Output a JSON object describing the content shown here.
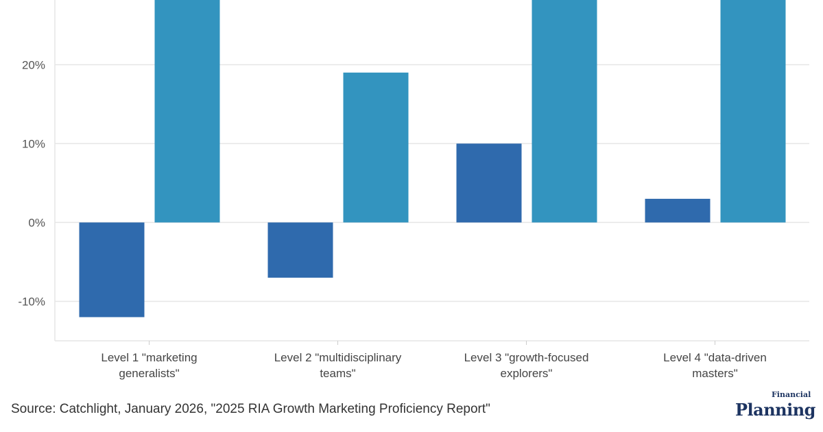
{
  "chart_data": {
    "type": "bar",
    "categories": [
      [
        "Level 1 \"marketing",
        "generalists\""
      ],
      [
        "Level 2 \"multidisciplinary",
        "teams\""
      ],
      [
        "Level 3 \"growth-focused",
        "explorers\""
      ],
      [
        "Level 4 \"data-driven",
        "masters\""
      ]
    ],
    "series": [
      {
        "values": [
          -12,
          -7,
          10,
          3
        ],
        "color": "#2f6aad"
      },
      {
        "values": [
          null,
          19,
          null,
          null
        ],
        "color": "#3394bf"
      }
    ],
    "series_note_visible_top_exceeded": [
      true,
      false,
      true,
      true
    ],
    "ylim": [
      -15,
      28.2
    ],
    "yticks": [
      -10,
      0,
      10,
      20
    ],
    "ytick_labels": [
      "-10%",
      "0%",
      "10%",
      "20%"
    ],
    "grid": true,
    "xlabel": "",
    "ylabel": ""
  },
  "footer": {
    "source": "Source: Catchlight, January 2026, \"2025 RIA Growth Marketing Proficiency Report\"",
    "logo_small": "Financial",
    "logo_big": "Planning"
  }
}
